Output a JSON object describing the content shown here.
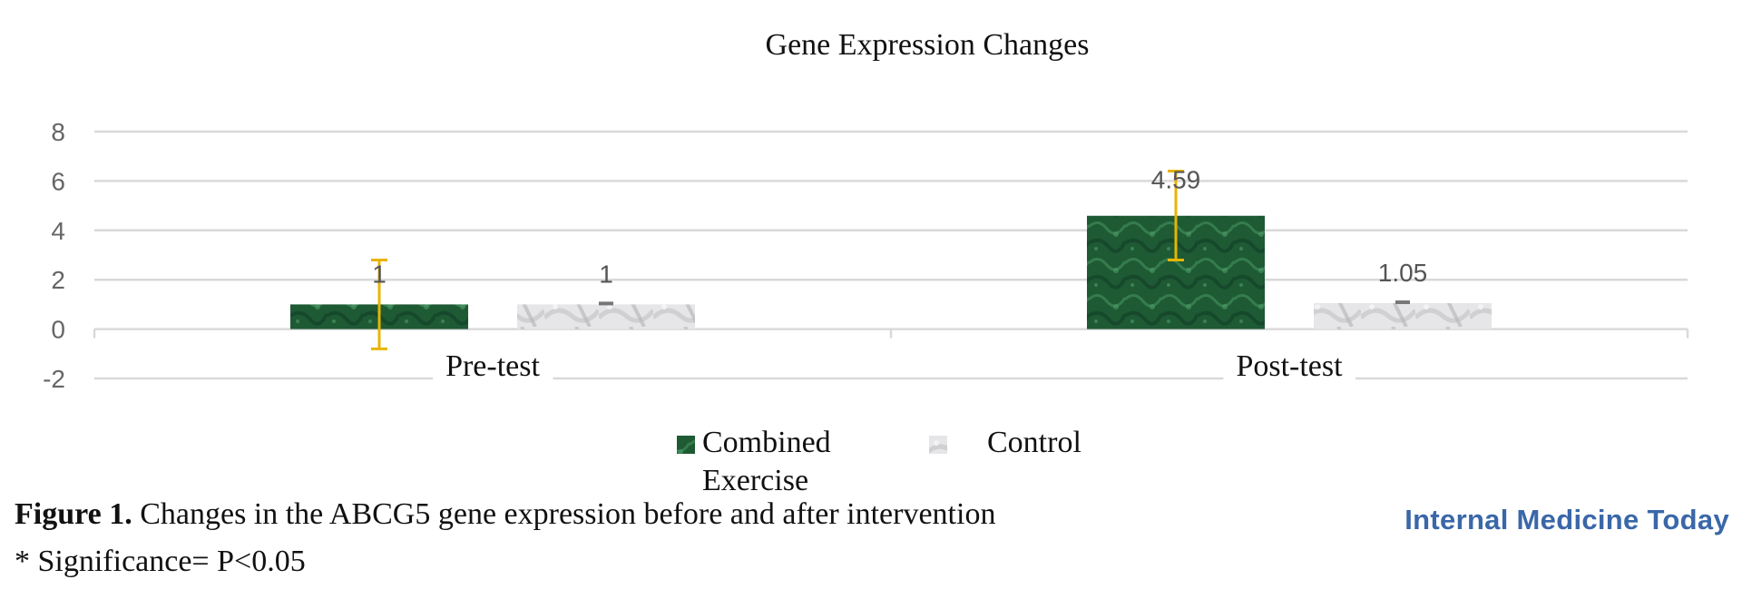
{
  "chart_data": {
    "type": "bar",
    "title": "Gene Expression Changes",
    "categories": [
      "Pre-test",
      "Post-test"
    ],
    "series": [
      {
        "name": "Combined Exercise",
        "values": [
          1,
          4.59
        ],
        "error_low": [
          -0.8,
          2.8
        ],
        "error_high": [
          2.8,
          6.4
        ],
        "data_labels": [
          "1",
          "4.59"
        ],
        "color": "#1e5a34"
      },
      {
        "name": "Control",
        "values": [
          1,
          1.05
        ],
        "error_low": [
          1,
          1.05
        ],
        "error_high": [
          1,
          1.05
        ],
        "data_labels": [
          "1",
          "1.05"
        ],
        "color": "#e2e2e4"
      }
    ],
    "ylim": [
      -2,
      8
    ],
    "yticks": [
      "8",
      "6",
      "4",
      "2",
      "0",
      "-2"
    ],
    "grid": true,
    "legend_placement": "bottom",
    "legend": {
      "line1": [
        "Combined",
        "Control"
      ],
      "line2": [
        "Exercise",
        ""
      ]
    },
    "error_bar_color": "#e8b400",
    "xlabel": "",
    "ylabel": ""
  },
  "caption": {
    "label": "Figure 1.",
    "text": " Changes in the ABCG5 gene expression before and after intervention"
  },
  "note": "* Significance= P<0.05",
  "brand": "Internal Medicine Today"
}
